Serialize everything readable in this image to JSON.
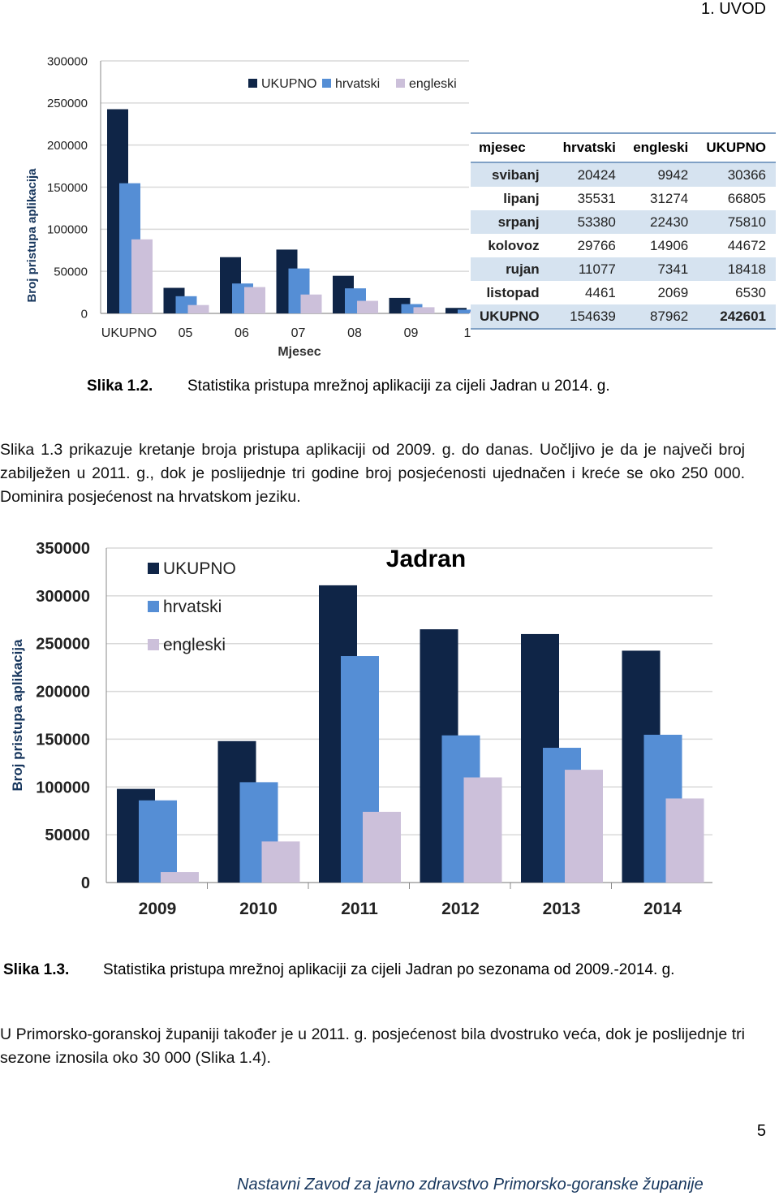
{
  "header": {
    "chapter": "1. UVOD"
  },
  "colors": {
    "ukupno": "#0f2547",
    "hrvatski": "#558ed5",
    "engleski": "#ccc0da",
    "grid": "#d9d9d9",
    "table_stripe": "#d6e3f0",
    "table_border": "#7fa0c5"
  },
  "figure_1_2": {
    "caption_label": "Slika 1.2.",
    "caption_text": "Statistika pristupa mrežnoj aplikaciji za cijeli Jadran u 2014. g.",
    "table": {
      "headers": [
        "mjesec",
        "hrvatski",
        "engleski",
        "UKUPNO"
      ],
      "rows": [
        [
          "svibanj",
          "20424",
          "9942",
          "30366"
        ],
        [
          "lipanj",
          "35531",
          "31274",
          "66805"
        ],
        [
          "srpanj",
          "53380",
          "22430",
          "75810"
        ],
        [
          "kolovoz",
          "29766",
          "14906",
          "44672"
        ],
        [
          "rujan",
          "11077",
          "7341",
          "18418"
        ],
        [
          "listopad",
          "4461",
          "2069",
          "6530"
        ],
        [
          "UKUPNO",
          "154639",
          "87962",
          "242601"
        ]
      ]
    }
  },
  "paragraph_1": "Slika 1.3 prikazuje kretanje broja pristupa aplikaciji od 2009. g. do danas. Uočljivo je da je največi broj zabilježen u 2011. g., dok je poslijednje tri godine broj posjećenosti ujednačen i kreće se oko 250 000. Dominira posjećenost na hrvatskom jeziku.",
  "figure_1_3": {
    "caption_label": "Slika 1.3.",
    "caption_text": "Statistika pristupa mrežnoj aplikaciji za cijeli Jadran po sezonama od 2009.-2014. g."
  },
  "paragraph_2": "U Primorsko-goranskoj županiji također je u 2011. g. posjećenost bila dvostruko veća, dok je poslijednje tri sezone iznosila oko 30 000 (Slika 1.4).",
  "page_number": "5",
  "footer": "Nastavni Zavod za javno zdravstvo Primorsko-goranske županije",
  "chart_data": [
    {
      "type": "bar",
      "title": "",
      "xlabel": "Mjesec",
      "ylabel": "Broj pristupa aplikacija",
      "ylim": [
        0,
        300000
      ],
      "yticks": [
        "0",
        "50000",
        "100000",
        "150000",
        "200000",
        "250000",
        "300000"
      ],
      "categories": [
        "UKUPNO",
        "05",
        "06",
        "07",
        "08",
        "09",
        "1"
      ],
      "legend_position": "top",
      "grid": true,
      "series": [
        {
          "name": "UKUPNO",
          "values": [
            242601,
            30366,
            66805,
            75810,
            44672,
            18418,
            6530
          ]
        },
        {
          "name": "hrvatski",
          "values": [
            154639,
            20424,
            35531,
            53380,
            29766,
            11077,
            4461
          ]
        },
        {
          "name": "engleski",
          "values": [
            87962,
            9942,
            31274,
            22430,
            14906,
            7341,
            2069
          ]
        }
      ]
    },
    {
      "type": "bar",
      "title": "Jadran",
      "xlabel": "",
      "ylabel": "Broj pristupa aplikacija",
      "ylim": [
        0,
        350000
      ],
      "yticks": [
        "0",
        "50000",
        "100000",
        "150000",
        "200000",
        "250000",
        "300000",
        "350000"
      ],
      "categories": [
        "2009",
        "2010",
        "2011",
        "2012",
        "2013",
        "2014"
      ],
      "legend_position": "top-left",
      "grid": true,
      "series": [
        {
          "name": "UKUPNO",
          "values": [
            98000,
            148000,
            311000,
            265000,
            260000,
            242601
          ]
        },
        {
          "name": "hrvatski",
          "values": [
            86000,
            105000,
            237000,
            154000,
            141000,
            154639
          ]
        },
        {
          "name": "engleski",
          "values": [
            11000,
            43000,
            74000,
            110000,
            118000,
            87962
          ]
        }
      ]
    }
  ]
}
